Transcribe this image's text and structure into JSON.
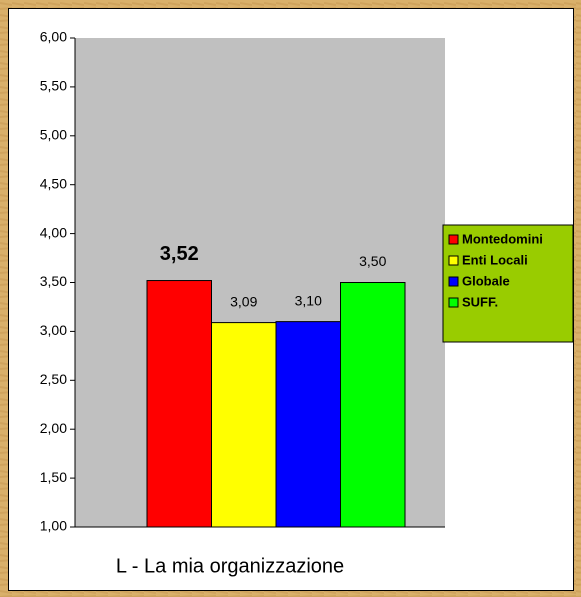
{
  "chart_data": {
    "type": "bar",
    "categories": [
      "L - La mia organizzazione"
    ],
    "series": [
      {
        "name": "Montedomini",
        "color": "#ff0000",
        "values": [
          3.52
        ],
        "value_labels": [
          "3,52"
        ]
      },
      {
        "name": "Enti Locali",
        "color": "#ffff00",
        "values": [
          3.09
        ],
        "value_labels": [
          "3,09"
        ]
      },
      {
        "name": "Globale",
        "color": "#0000ff",
        "values": [
          3.1
        ],
        "value_labels": [
          "3,10"
        ]
      },
      {
        "name": "SUFF.",
        "color": "#00ff00",
        "values": [
          3.5
        ],
        "value_labels": [
          "3,50"
        ]
      }
    ],
    "ylim": [
      1,
      6
    ],
    "yticks": [
      {
        "value": 1,
        "label": "1,00"
      },
      {
        "value": 1.5,
        "label": "1,50"
      },
      {
        "value": 2,
        "label": "2,00"
      },
      {
        "value": 2.5,
        "label": "2,50"
      },
      {
        "value": 3,
        "label": "3,00"
      },
      {
        "value": 3.5,
        "label": "3,50"
      },
      {
        "value": 4,
        "label": "4,00"
      },
      {
        "value": 4.5,
        "label": "4,50"
      },
      {
        "value": 5,
        "label": "5,00"
      },
      {
        "value": 5.5,
        "label": "5,50"
      },
      {
        "value": 6,
        "label": "6,00"
      }
    ],
    "legend": "right",
    "plot_background": "#c0c0c0",
    "legend_background": "#99cc00"
  }
}
